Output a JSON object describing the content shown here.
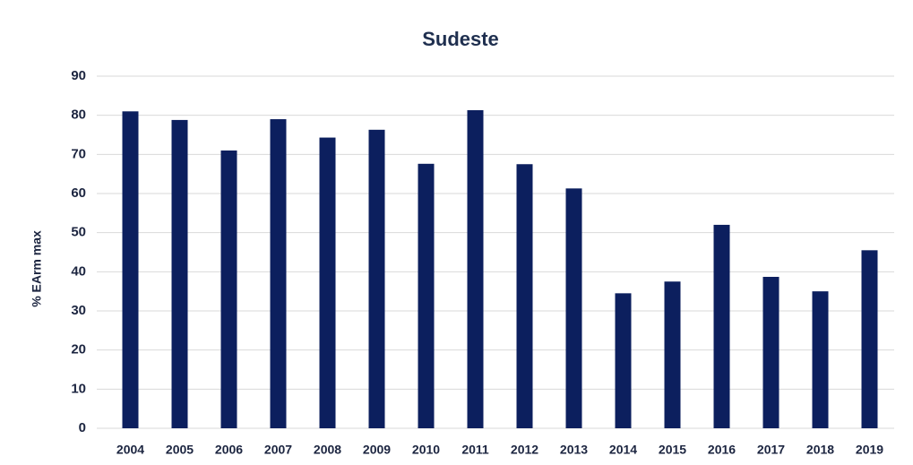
{
  "chart_data": {
    "type": "bar",
    "title": "Sudeste",
    "y_label": "% EArm max",
    "categories": [
      "2004",
      "2005",
      "2006",
      "2007",
      "2008",
      "2009",
      "2010",
      "2011",
      "2012",
      "2013",
      "2014",
      "2015",
      "2016",
      "2017",
      "2018",
      "2019"
    ],
    "values": [
      81,
      78.8,
      71,
      79,
      74.3,
      76.3,
      67.6,
      81.3,
      67.5,
      61.3,
      34.5,
      37.5,
      52,
      38.7,
      35,
      45.5
    ],
    "color": "#0c1f5e",
    "ylim": [
      0,
      90
    ],
    "yticks": [
      0,
      10,
      20,
      30,
      40,
      50,
      60,
      70,
      80,
      90
    ],
    "grid": true
  }
}
